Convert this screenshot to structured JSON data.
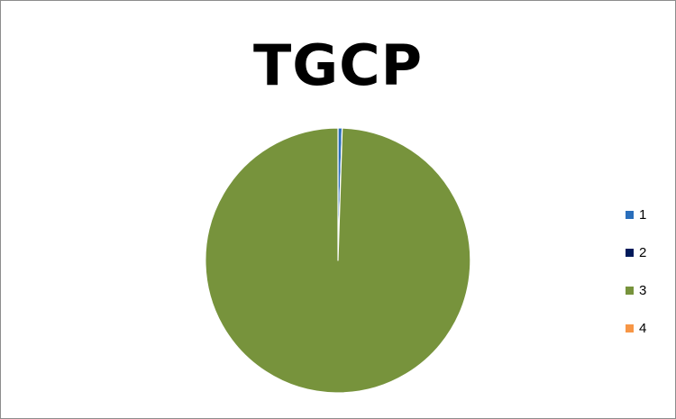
{
  "chart_data": {
    "type": "pie",
    "title": "TGCP",
    "categories": [
      "1",
      "2",
      "3",
      "4"
    ],
    "values": [
      0.5,
      0.01,
      99.49,
      0.0
    ],
    "colors": [
      "#2a6ebb",
      "#001a5a",
      "#77933c",
      "#f79646"
    ],
    "legend_position": "right",
    "start_angle_deg": 0
  }
}
